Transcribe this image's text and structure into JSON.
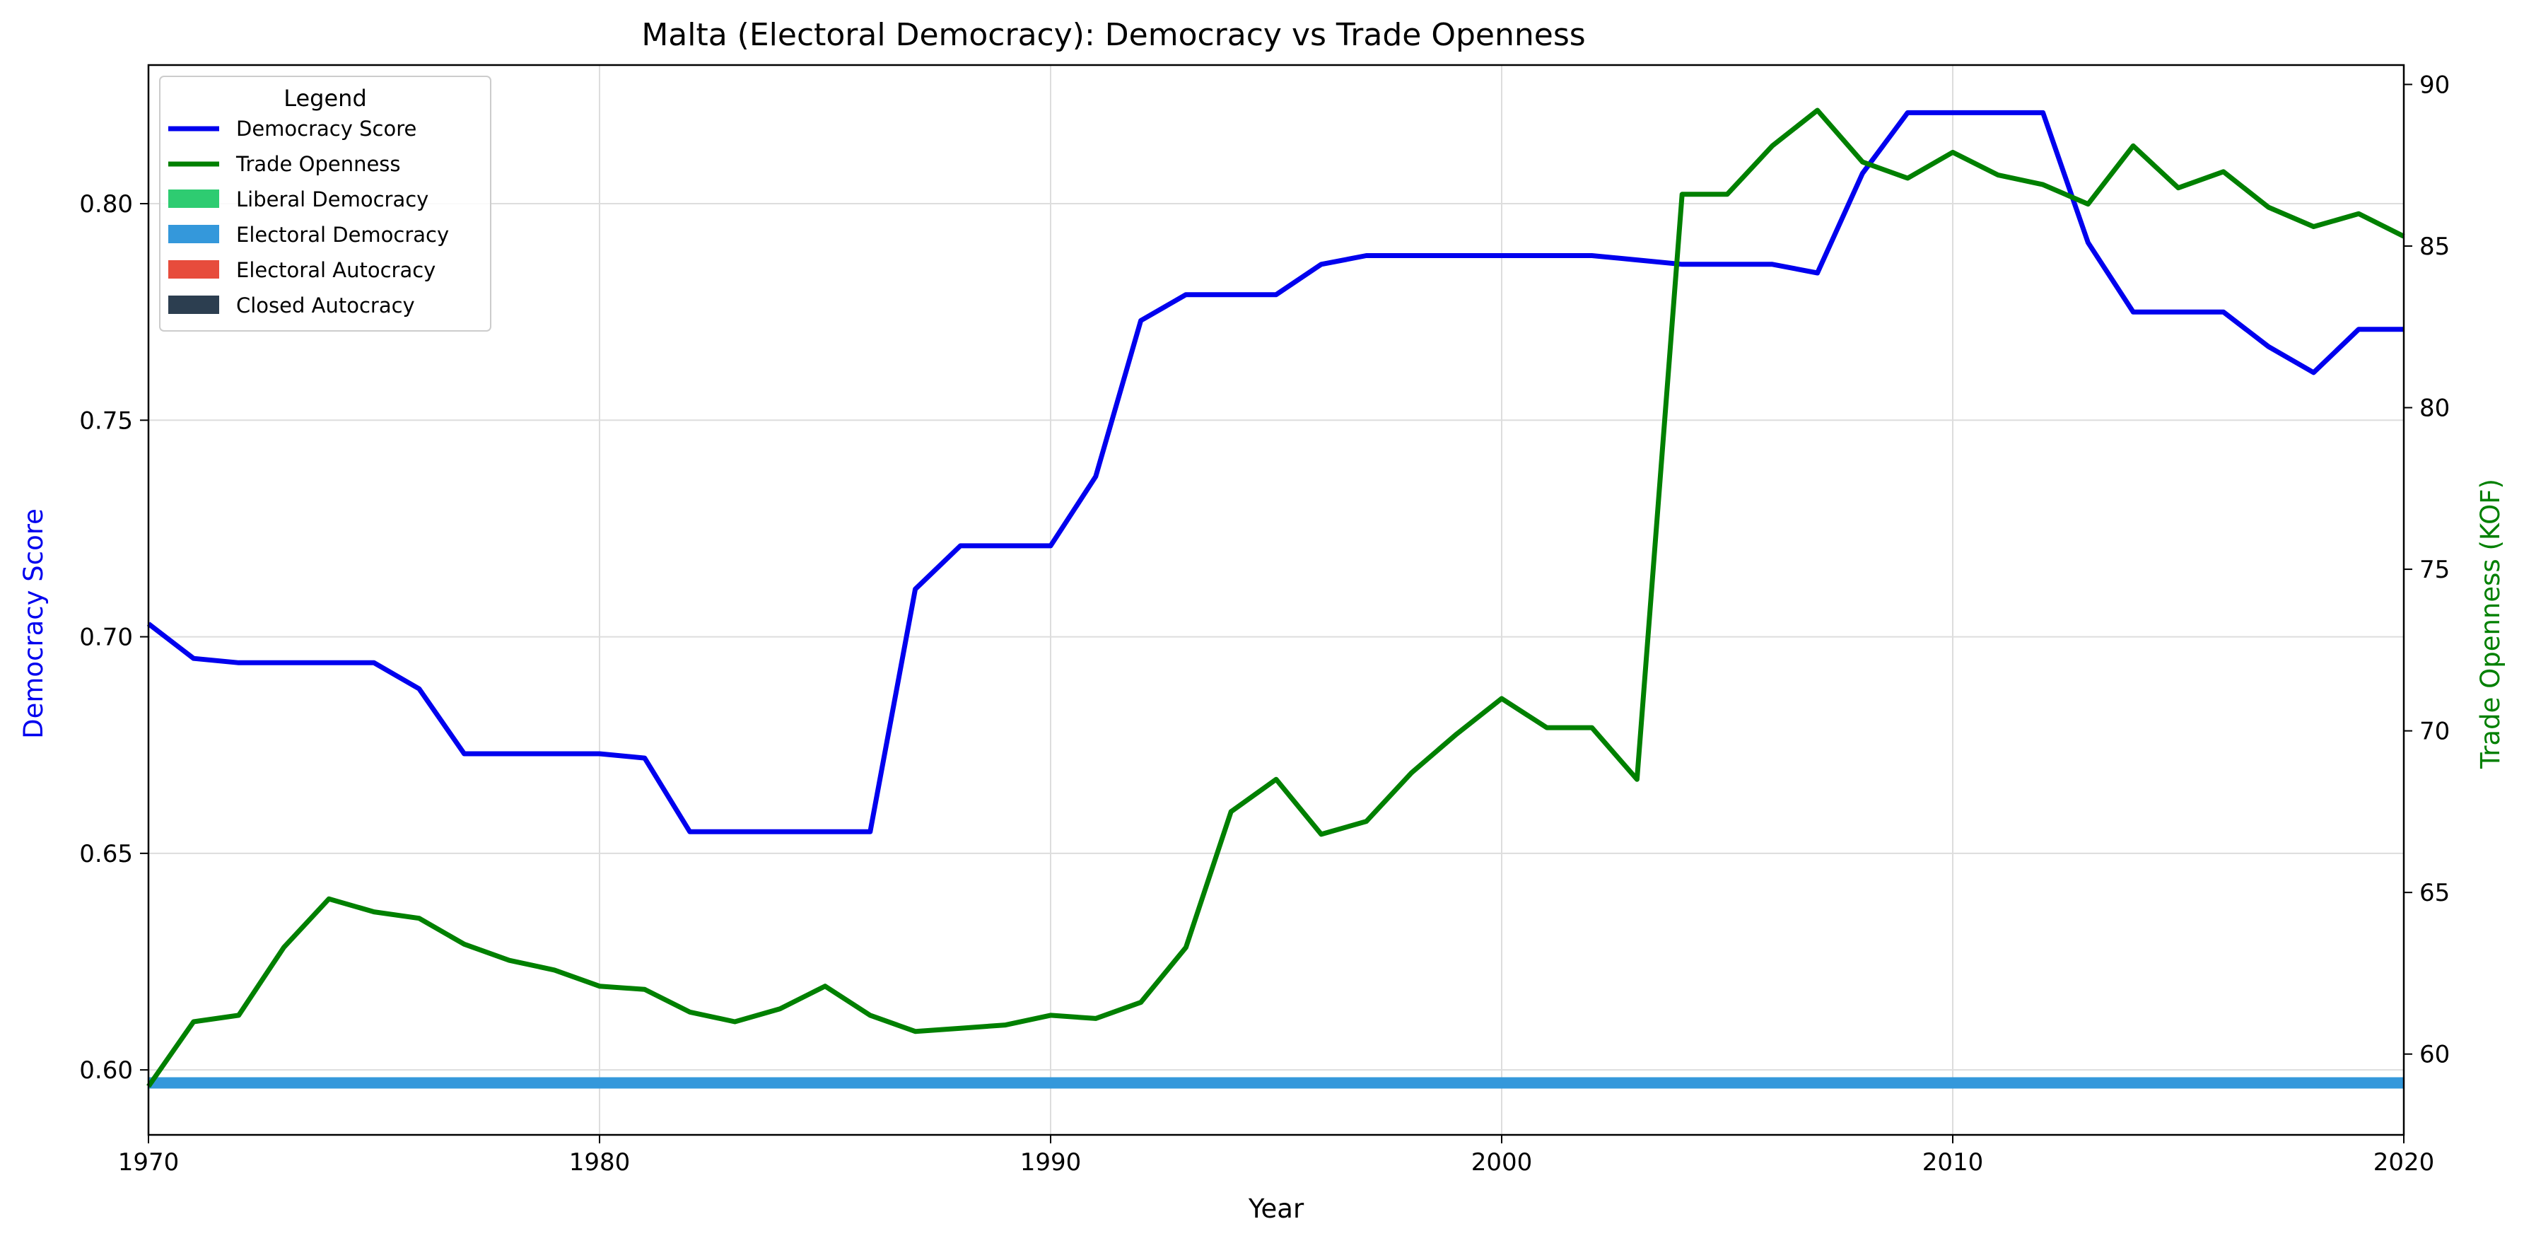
{
  "chart_data": {
    "type": "line",
    "title": "Malta (Electoral Democracy): Democracy vs Trade Openness",
    "xlabel": "Year",
    "ylabel_left": "Democracy Score",
    "ylabel_right": "Trade Openness (KOF)",
    "xlim": [
      1970,
      2020
    ],
    "ylim_left": [
      0.585,
      0.832
    ],
    "ylim_right": [
      57.5,
      90.6
    ],
    "x_ticks": [
      1970,
      1980,
      1990,
      2000,
      2010,
      2020
    ],
    "y_left_ticks": [
      "0.60",
      "0.65",
      "0.70",
      "0.75",
      "0.80"
    ],
    "y_right_ticks": [
      "60",
      "65",
      "70",
      "75",
      "80",
      "85",
      "90"
    ],
    "grid": true,
    "legend": {
      "title": "Legend",
      "placement": "top-left",
      "entries": [
        {
          "label": "Democracy Score",
          "kind": "line",
          "color": "#0000ee"
        },
        {
          "label": "Trade Openness",
          "kind": "line",
          "color": "#008000"
        },
        {
          "label": "Liberal Democracy",
          "kind": "patch",
          "color": "#2ecc71"
        },
        {
          "label": "Electoral Democracy",
          "kind": "patch",
          "color": "#3498db"
        },
        {
          "label": "Electoral Autocracy",
          "kind": "patch",
          "color": "#e74c3c"
        },
        {
          "label": "Closed Autocracy",
          "kind": "patch",
          "color": "#2c3e50"
        }
      ]
    },
    "regime_band": {
      "label": "Electoral Democracy",
      "x_start": 1970,
      "x_end": 2020,
      "y": 0.597,
      "color": "#3498db"
    },
    "x": [
      1970,
      1971,
      1972,
      1973,
      1974,
      1975,
      1976,
      1977,
      1978,
      1979,
      1980,
      1981,
      1982,
      1983,
      1984,
      1985,
      1986,
      1987,
      1988,
      1989,
      1990,
      1991,
      1992,
      1993,
      1994,
      1995,
      1996,
      1997,
      1998,
      1999,
      2000,
      2001,
      2002,
      2003,
      2004,
      2005,
      2006,
      2007,
      2008,
      2009,
      2010,
      2011,
      2012,
      2013,
      2014,
      2015,
      2016,
      2017,
      2018,
      2019,
      2020
    ],
    "series": [
      {
        "name": "Democracy Score",
        "axis": "left",
        "color": "#0000ee",
        "values": [
          0.703,
          0.695,
          0.694,
          0.694,
          0.694,
          0.694,
          0.688,
          0.673,
          0.673,
          0.673,
          0.673,
          0.672,
          0.655,
          0.655,
          0.655,
          0.655,
          0.655,
          0.711,
          0.721,
          0.721,
          0.721,
          0.737,
          0.773,
          0.779,
          0.779,
          0.779,
          0.786,
          0.788,
          0.788,
          0.788,
          0.788,
          0.788,
          0.788,
          0.787,
          0.786,
          0.786,
          0.786,
          0.784,
          0.807,
          0.821,
          0.821,
          0.821,
          0.821,
          0.791,
          0.775,
          0.775,
          0.775,
          0.767,
          0.761,
          0.771,
          0.771
        ]
      },
      {
        "name": "Trade Openness",
        "axis": "right",
        "color": "#008000",
        "values": [
          59.0,
          61.0,
          61.2,
          63.3,
          64.8,
          64.4,
          64.2,
          63.4,
          62.9,
          62.6,
          62.1,
          62.0,
          61.3,
          61.0,
          61.4,
          62.1,
          61.2,
          60.7,
          60.8,
          60.9,
          61.2,
          61.1,
          61.6,
          63.3,
          67.5,
          68.5,
          66.8,
          67.2,
          68.7,
          69.9,
          71.0,
          70.1,
          70.1,
          68.5,
          86.6,
          86.6,
          88.1,
          89.2,
          87.6,
          87.1,
          87.9,
          87.2,
          86.9,
          86.3,
          88.1,
          86.8,
          87.3,
          86.2,
          85.6,
          86.0,
          85.3
        ]
      }
    ]
  }
}
